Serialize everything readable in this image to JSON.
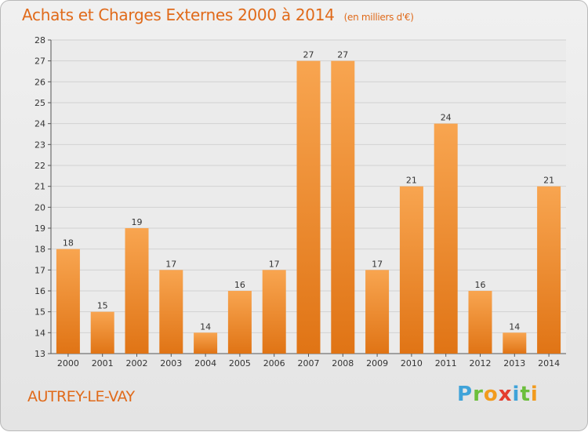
{
  "header": {
    "title": "Achats et Charges Externes 2000 à 2014",
    "unit": "(en milliers d'€)"
  },
  "footer": {
    "commune": "AUTREY-LE-VAY",
    "brand": "Proxiti"
  },
  "chart_data": {
    "type": "bar",
    "title": "Achats et Charges Externes 2000 à 2014",
    "subtitle": "(en milliers d'€)",
    "xlabel": "",
    "ylabel": "",
    "categories": [
      "2000",
      "2001",
      "2002",
      "2003",
      "2004",
      "2005",
      "2006",
      "2007",
      "2008",
      "2009",
      "2010",
      "2011",
      "2012",
      "2013",
      "2014"
    ],
    "values": [
      18,
      15,
      19,
      17,
      14,
      16,
      17,
      27,
      27,
      17,
      21,
      24,
      16,
      14,
      21
    ],
    "ylim": [
      13,
      28
    ],
    "yticks": [
      13,
      14,
      15,
      16,
      17,
      18,
      19,
      20,
      21,
      22,
      23,
      24,
      25,
      26,
      27,
      28
    ],
    "grid": "horizontal",
    "legend": "none",
    "colors": {
      "bar_top": "#f8a550",
      "bar_bottom": "#e07415",
      "grid": "#d2d2d2",
      "text": "#333333"
    }
  }
}
